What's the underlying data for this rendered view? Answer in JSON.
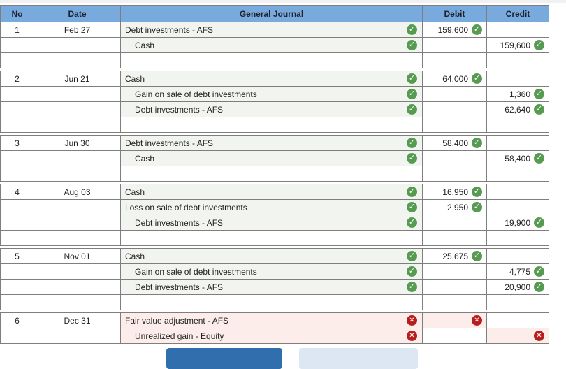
{
  "table": {
    "columns": [
      "No",
      "Date",
      "General Journal",
      "Debit",
      "Credit"
    ]
  },
  "entries": [
    {
      "no": "1",
      "date": "Feb 27",
      "spacer_row": true,
      "lines": [
        {
          "account": "Debt investments - AFS",
          "indent": false,
          "journal_mark": "correct",
          "debit": "159,600",
          "debit_mark": "correct",
          "credit": "",
          "credit_mark": null
        },
        {
          "account": "Cash",
          "indent": true,
          "journal_mark": "correct",
          "debit": "",
          "debit_mark": null,
          "credit": "159,600",
          "credit_mark": "correct"
        }
      ]
    },
    {
      "no": "2",
      "date": "Jun 21",
      "spacer_row": true,
      "lines": [
        {
          "account": "Cash",
          "indent": false,
          "journal_mark": "correct",
          "debit": "64,000",
          "debit_mark": "correct",
          "credit": "",
          "credit_mark": null
        },
        {
          "account": "Gain on sale of debt investments",
          "indent": true,
          "journal_mark": "correct",
          "debit": "",
          "debit_mark": null,
          "credit": "1,360",
          "credit_mark": "correct"
        },
        {
          "account": "Debt investments - AFS",
          "indent": true,
          "journal_mark": "correct",
          "debit": "",
          "debit_mark": null,
          "credit": "62,640",
          "credit_mark": "correct"
        }
      ]
    },
    {
      "no": "3",
      "date": "Jun 30",
      "spacer_row": true,
      "lines": [
        {
          "account": "Debt investments - AFS",
          "indent": false,
          "journal_mark": "correct",
          "debit": "58,400",
          "debit_mark": "correct",
          "credit": "",
          "credit_mark": null
        },
        {
          "account": "Cash",
          "indent": true,
          "journal_mark": "correct",
          "debit": "",
          "debit_mark": null,
          "credit": "58,400",
          "credit_mark": "correct"
        }
      ]
    },
    {
      "no": "4",
      "date": "Aug 03",
      "spacer_row": true,
      "lines": [
        {
          "account": "Cash",
          "indent": false,
          "journal_mark": "correct",
          "debit": "16,950",
          "debit_mark": "correct",
          "credit": "",
          "credit_mark": null
        },
        {
          "account": "Loss on sale of debt investments",
          "indent": false,
          "journal_mark": "correct",
          "debit": "2,950",
          "debit_mark": "correct",
          "credit": "",
          "credit_mark": null
        },
        {
          "account": "Debt investments - AFS",
          "indent": true,
          "journal_mark": "correct",
          "debit": "",
          "debit_mark": null,
          "credit": "19,900",
          "credit_mark": "correct"
        }
      ]
    },
    {
      "no": "5",
      "date": "Nov 01",
      "spacer_row": true,
      "lines": [
        {
          "account": "Cash",
          "indent": false,
          "journal_mark": "correct",
          "debit": "25,675",
          "debit_mark": "correct",
          "credit": "",
          "credit_mark": null
        },
        {
          "account": "Gain on sale of debt investments",
          "indent": true,
          "journal_mark": "correct",
          "debit": "",
          "debit_mark": null,
          "credit": "4,775",
          "credit_mark": "correct"
        },
        {
          "account": "Debt investments - AFS",
          "indent": true,
          "journal_mark": "correct",
          "debit": "",
          "debit_mark": null,
          "credit": "20,900",
          "credit_mark": "correct"
        }
      ]
    },
    {
      "no": "6",
      "date": "Dec 31",
      "spacer_row": false,
      "lines": [
        {
          "account": "Fair value adjustment - AFS",
          "indent": false,
          "journal_mark": "wrong",
          "debit": "",
          "debit_mark": "wrong",
          "credit": "",
          "credit_mark": null
        },
        {
          "account": "Unrealized gain - Equity",
          "indent": true,
          "journal_mark": "wrong",
          "debit": "",
          "debit_mark": null,
          "credit": "",
          "credit_mark": "wrong"
        }
      ]
    }
  ],
  "icons": {
    "correct": "check-icon",
    "correct_glyph": "✓",
    "wrong": "x-icon",
    "wrong_glyph": "✕"
  },
  "buttons": {
    "primary_label": "",
    "secondary_label": ""
  },
  "colors": {
    "header_bg": "#79aadd",
    "border": "#7e7e7e",
    "journal_cell_bg": "#f2f5ef",
    "error_cell_bg": "#fcedeb",
    "correct_green": "#579b52",
    "wrong_red": "#b71d1d",
    "primary_button": "#316eae",
    "secondary_button": "#dde7f4",
    "top_strip": "#f1f1f1"
  }
}
